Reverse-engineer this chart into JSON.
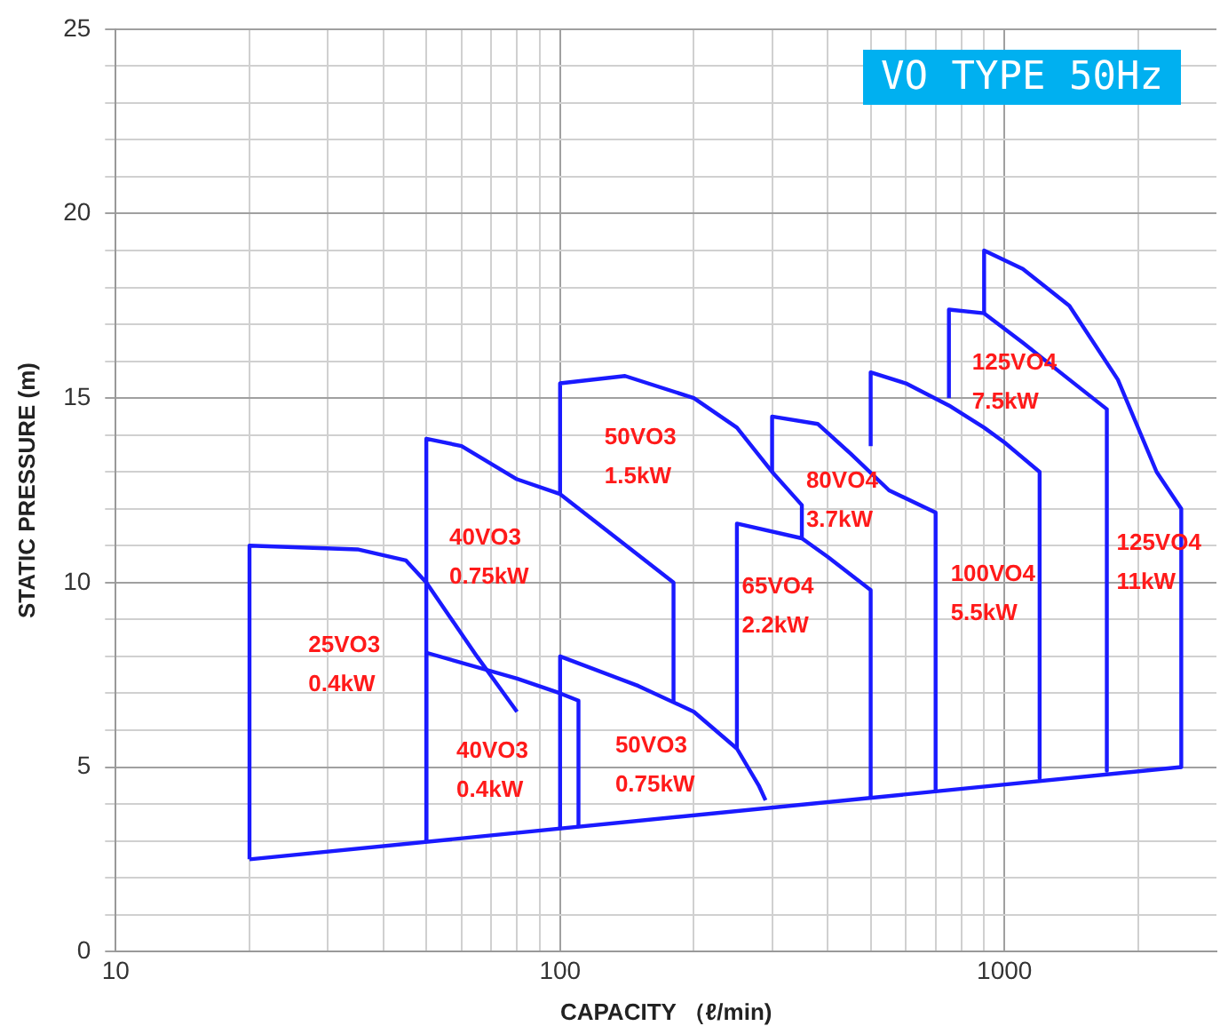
{
  "chart_data": {
    "type": "line",
    "title": "VO TYPE 50Hz",
    "xlabel": "CAPACITY （ℓ/min)",
    "ylabel": "STATIC PRESSURE (m)",
    "log": "x",
    "grid": true,
    "legend": false,
    "marker": "none",
    "line_style": "solid",
    "xlim": [
      10,
      3000
    ],
    "xticks": [
      10,
      {
        "value": 20,
        "label": null
      },
      {
        "value": 30,
        "label": null
      },
      {
        "value": 40,
        "label": null
      },
      {
        "value": 50,
        "label": null
      },
      {
        "value": 60,
        "label": null
      },
      {
        "value": 70,
        "label": null
      },
      {
        "value": 80,
        "label": null
      },
      {
        "value": 90,
        "label": null
      },
      100,
      {
        "value": 200,
        "label": null
      },
      {
        "value": 300,
        "label": null
      },
      {
        "value": 400,
        "label": null
      },
      {
        "value": 500,
        "label": null
      },
      {
        "value": 600,
        "label": null
      },
      {
        "value": 700,
        "label": null
      },
      {
        "value": 800,
        "label": null
      },
      {
        "value": 900,
        "label": null
      },
      1000,
      {
        "value": 2000,
        "label": null
      }
    ],
    "ylim": [
      0,
      25
    ],
    "yticks": [
      0,
      {
        "value": 1,
        "label": null
      },
      {
        "value": 2,
        "label": null
      },
      {
        "value": 3,
        "label": null
      },
      {
        "value": 4,
        "label": null
      },
      5,
      {
        "value": 6,
        "label": null
      },
      {
        "value": 7,
        "label": null
      },
      {
        "value": 8,
        "label": null
      },
      {
        "value": 9,
        "label": null
      },
      10,
      {
        "value": 11,
        "label": null
      },
      {
        "value": 12,
        "label": null
      },
      {
        "value": 13,
        "label": null
      },
      {
        "value": 14,
        "label": null
      },
      15,
      {
        "value": 16,
        "label": null
      },
      {
        "value": 17,
        "label": null
      },
      {
        "value": 18,
        "label": null
      },
      {
        "value": 19,
        "label": null
      },
      20,
      {
        "value": 21,
        "label": null
      },
      {
        "value": 22,
        "label": null
      },
      {
        "value": 23,
        "label": null
      },
      {
        "value": 24,
        "label": null
      },
      25
    ],
    "series": [
      {
        "color": "#1a1aff",
        "x": [
          20,
          2500
        ],
        "values": [
          2.5,
          5
        ]
      },
      {
        "color": "#1a1aff",
        "x": [
          20,
          20,
          35,
          45,
          50,
          65,
          80
        ],
        "values": [
          2.5,
          11,
          10.9,
          10.6,
          10,
          8,
          6.5
        ]
      },
      {
        "color": "#1a1aff",
        "x": [
          50,
          50,
          60,
          80,
          100,
          180,
          180
        ],
        "values": [
          3,
          13.9,
          13.7,
          12.8,
          12.4,
          10,
          6.8
        ]
      },
      {
        "color": "#1a1aff",
        "x": [
          50,
          50,
          80,
          100,
          110,
          110
        ],
        "values": [
          3,
          8.1,
          7.4,
          7,
          6.8,
          3.4
        ]
      },
      {
        "color": "#1a1aff",
        "x": [
          100,
          100,
          150,
          200,
          250,
          280,
          290
        ],
        "values": [
          3.3,
          8,
          7.2,
          6.5,
          5.5,
          4.5,
          4.1
        ]
      },
      {
        "color": "#1a1aff",
        "x": [
          100,
          100,
          140,
          200,
          250,
          300,
          350,
          350
        ],
        "values": [
          12.4,
          15.4,
          15.6,
          15,
          14.2,
          13,
          12.1,
          11.2
        ]
      },
      {
        "color": "#1a1aff",
        "x": [
          250,
          250,
          350,
          400,
          500,
          500
        ],
        "values": [
          5.5,
          11.6,
          11.2,
          10.7,
          9.8,
          4.2
        ]
      },
      {
        "color": "#1a1aff",
        "x": [
          300,
          300,
          380,
          450,
          550,
          700,
          700
        ],
        "values": [
          13,
          14.5,
          14.3,
          13.5,
          12.5,
          11.9,
          4.4
        ]
      },
      {
        "color": "#1a1aff",
        "x": [
          500,
          500,
          600,
          750,
          900,
          1000,
          1200,
          1200
        ],
        "values": [
          13.7,
          15.7,
          15.4,
          14.8,
          14.2,
          13.8,
          13,
          4.7
        ]
      },
      {
        "color": "#1a1aff",
        "x": [
          750,
          750,
          900,
          1100,
          1400,
          1700,
          1700
        ],
        "values": [
          15,
          17.4,
          17.3,
          16.5,
          15.5,
          14.7,
          4.9
        ]
      },
      {
        "color": "#1a1aff",
        "x": [
          900,
          900,
          1100,
          1400,
          1800,
          2200,
          2500,
          2500
        ],
        "values": [
          17.3,
          19,
          18.5,
          17.5,
          15.5,
          13,
          12,
          5
        ]
      }
    ],
    "annotations": [
      "25VO3\n0.4kW",
      "40VO3\n0.75kW",
      "40VO3\n0.4kW",
      "50VO3\n0.75kW",
      "50VO3\n1.5kW",
      "65VO4\n2.2kW",
      "80VO4\n3.7kW",
      "100VO4\n5.5kW",
      "125VO4\n7.5kW",
      "125VO4\n11kW"
    ]
  }
}
